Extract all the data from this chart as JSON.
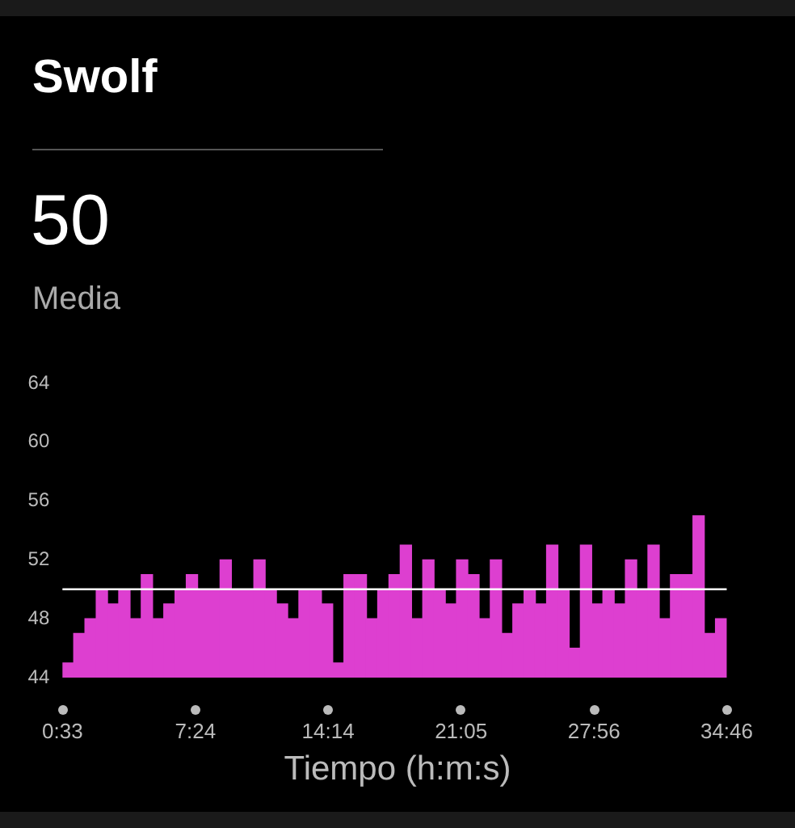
{
  "chart_data": {
    "type": "bar",
    "title": "Swolf",
    "subtitle": "50",
    "annotations": [
      "Media"
    ],
    "xlabel": "Tiempo (h:m:s)",
    "x": [
      0.84,
      1.42,
      2,
      2.58,
      3.16,
      3.74,
      4.32,
      4.9,
      5.48,
      6.06,
      6.64,
      7.22,
      7.8,
      8.38,
      8.96,
      9.54,
      10.12,
      10.7,
      11.28,
      11.86,
      12.44,
      13.02,
      13.6,
      14.18,
      14.76,
      15.34,
      15.92,
      16.5,
      17.08,
      17.66,
      18.24,
      18.82,
      19.4,
      19.98,
      20.56,
      21.14,
      21.72,
      22.3,
      22.88,
      23.46,
      24.04,
      24.62,
      25.2,
      25.78,
      26.36,
      26.94,
      27.52,
      28.1,
      28.68,
      29.26,
      29.84,
      30.42,
      31,
      31.58,
      32.16,
      32.74,
      33.32,
      33.9,
      34.48
    ],
    "values": [
      45,
      47,
      48,
      50,
      49,
      50,
      48,
      51,
      48,
      49,
      50,
      51,
      50,
      50,
      52,
      50,
      50,
      52,
      50,
      49,
      48,
      50,
      50,
      49,
      45,
      51,
      51,
      48,
      50,
      51,
      53,
      48,
      52,
      50,
      49,
      52,
      51,
      48,
      52,
      47,
      49,
      50,
      49,
      53,
      50,
      46,
      53,
      49,
      50,
      49,
      52,
      50,
      53,
      48,
      51,
      51,
      55,
      47,
      48
    ],
    "color": "#dd3fd0",
    "xlim": [
      0.55,
      34.767
    ],
    "xticks": [
      {
        "value": 0.55,
        "label": "0:33"
      },
      {
        "value": 7.4,
        "label": "7:24"
      },
      {
        "value": 14.233,
        "label": "14:14"
      },
      {
        "value": 21.083,
        "label": "21:05"
      },
      {
        "value": 27.933,
        "label": "27:56"
      },
      {
        "value": 34.767,
        "label": "34:46"
      }
    ],
    "ylim": [
      44,
      64
    ],
    "yticks": [
      44,
      48,
      52,
      56,
      60,
      64
    ],
    "ref_lines": [
      {
        "axis": "y",
        "value": 50,
        "color": "#ffffff"
      }
    ]
  }
}
